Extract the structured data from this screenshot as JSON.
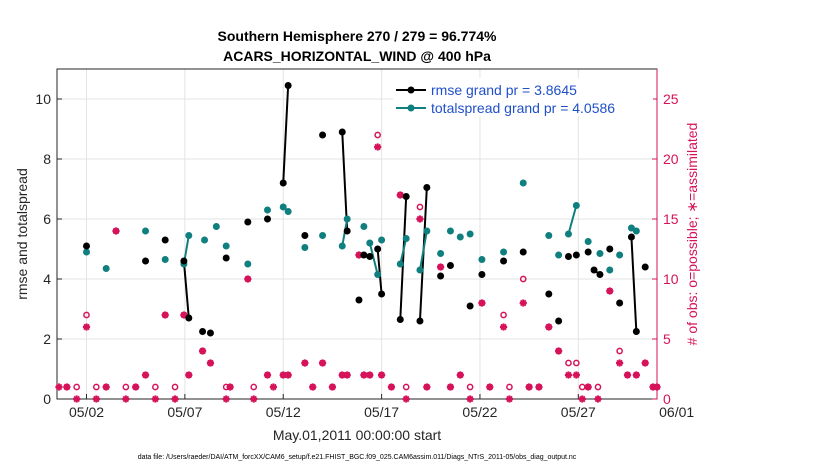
{
  "chart_data": {
    "type": "scatter",
    "title": "Southern Hemisphere 270 / 279 = 96.774%",
    "subtitle": "ACARS_HORIZONTAL_WIND @ 400 hPa",
    "xlabel": "May.01,2011 00:00:00 start",
    "ylabel_left": "rmse and totalspread",
    "ylabel_right": "# of obs: o=possible; ∗=assimilated",
    "footer": "data file: /Users/raeder/DAI/ATM_forcXX/CAM6_setup/f.e21.FHIST_BGC.f09_025.CAM6assim.011/Diags_NTrS_2011-05/obs_diag_output.nc",
    "xlim": [
      0.5,
      31
    ],
    "ylim_left": [
      0,
      11
    ],
    "ylim_right": [
      0,
      27.5
    ],
    "x_ticks": [
      {
        "v": 2,
        "label": "05/02"
      },
      {
        "v": 7,
        "label": "05/07"
      },
      {
        "v": 12,
        "label": "05/12"
      },
      {
        "v": 17,
        "label": "05/17"
      },
      {
        "v": 22,
        "label": "05/22"
      },
      {
        "v": 27,
        "label": "05/27"
      },
      {
        "v": 32,
        "label": "06/01"
      }
    ],
    "y_ticks_left": [
      "0",
      "2",
      "4",
      "6",
      "8",
      "10"
    ],
    "y_ticks_right": [
      "0",
      "5",
      "10",
      "15",
      "20",
      "25"
    ],
    "grid": true,
    "legend_position": "top-right",
    "colors": {
      "rmse": "#000000",
      "spread": "#0f7f7f",
      "obs": "#d6135a",
      "legend_text": "#1f50c8"
    },
    "series": [
      {
        "name": "rmse grand pr = 3.8645",
        "points": [
          [
            2.0,
            5.1
          ],
          [
            5.0,
            4.6
          ],
          [
            6.0,
            5.3
          ],
          [
            6.95,
            4.6
          ],
          [
            7.2,
            2.7
          ],
          [
            7.9,
            2.25
          ],
          [
            8.3,
            2.2
          ],
          [
            9.1,
            4.7
          ],
          [
            10.2,
            5.9
          ],
          [
            11.2,
            6.0
          ],
          [
            12.0,
            7.2
          ],
          [
            12.25,
            10.45
          ],
          [
            13.1,
            5.45
          ],
          [
            14.0,
            8.8
          ],
          [
            15.0,
            8.9
          ],
          [
            15.25,
            5.6
          ],
          [
            15.85,
            3.3
          ],
          [
            16.1,
            4.8
          ],
          [
            16.4,
            4.75
          ],
          [
            16.8,
            5.0
          ],
          [
            17.0,
            3.5
          ],
          [
            17.95,
            2.65
          ],
          [
            18.25,
            6.75
          ],
          [
            18.95,
            2.6
          ],
          [
            19.3,
            7.05
          ],
          [
            20.0,
            4.1
          ],
          [
            20.5,
            4.45
          ],
          [
            21.5,
            3.1
          ],
          [
            22.1,
            4.15
          ],
          [
            23.2,
            4.6
          ],
          [
            24.2,
            4.9
          ],
          [
            25.5,
            3.5
          ],
          [
            26.0,
            2.6
          ],
          [
            26.5,
            4.75
          ],
          [
            26.9,
            4.8
          ],
          [
            27.5,
            4.9
          ],
          [
            27.8,
            4.3
          ],
          [
            28.1,
            4.15
          ],
          [
            28.6,
            5.0
          ],
          [
            29.1,
            3.2
          ],
          [
            29.7,
            5.4
          ],
          [
            29.95,
            2.25
          ],
          [
            30.4,
            4.4
          ]
        ],
        "segments": [
          [
            6.95,
            7.2
          ],
          [
            12.0,
            12.25
          ],
          [
            15.0,
            15.25
          ],
          [
            16.1,
            16.4
          ],
          [
            16.8,
            17.0
          ],
          [
            17.95,
            18.25
          ],
          [
            18.95,
            19.3
          ],
          [
            27.8,
            28.1
          ],
          [
            29.7,
            29.95
          ]
        ]
      },
      {
        "name": "totalspread grand pr = 4.0586",
        "points": [
          [
            2.0,
            4.9
          ],
          [
            3.0,
            4.35
          ],
          [
            5.0,
            5.6
          ],
          [
            6.0,
            4.65
          ],
          [
            6.95,
            4.5
          ],
          [
            7.2,
            5.45
          ],
          [
            8.0,
            5.3
          ],
          [
            8.6,
            5.75
          ],
          [
            9.1,
            5.1
          ],
          [
            10.2,
            4.5
          ],
          [
            11.2,
            6.3
          ],
          [
            12.0,
            6.4
          ],
          [
            12.25,
            6.25
          ],
          [
            13.1,
            5.05
          ],
          [
            14.0,
            5.45
          ],
          [
            15.0,
            5.1
          ],
          [
            15.25,
            6.0
          ],
          [
            16.1,
            5.75
          ],
          [
            16.4,
            5.2
          ],
          [
            16.8,
            4.15
          ],
          [
            17.0,
            5.3
          ],
          [
            17.95,
            4.5
          ],
          [
            18.25,
            5.35
          ],
          [
            18.95,
            4.3
          ],
          [
            19.3,
            5.6
          ],
          [
            20.0,
            4.85
          ],
          [
            20.5,
            5.6
          ],
          [
            21.0,
            5.4
          ],
          [
            21.5,
            5.5
          ],
          [
            22.1,
            4.65
          ],
          [
            23.2,
            4.9
          ],
          [
            24.2,
            7.2
          ],
          [
            25.5,
            5.45
          ],
          [
            26.0,
            4.8
          ],
          [
            26.5,
            5.5
          ],
          [
            26.9,
            6.45
          ],
          [
            27.5,
            5.25
          ],
          [
            28.1,
            4.85
          ],
          [
            28.6,
            4.3
          ],
          [
            29.1,
            4.8
          ],
          [
            29.7,
            5.7
          ],
          [
            29.95,
            5.6
          ]
        ],
        "segments": [
          [
            6.95,
            7.2
          ],
          [
            15.0,
            15.25
          ],
          [
            16.4,
            16.8
          ],
          [
            17.95,
            18.25
          ],
          [
            18.95,
            19.3
          ],
          [
            26.5,
            26.9
          ]
        ]
      },
      {
        "name": "obs possible",
        "points": [
          [
            1.0,
            1
          ],
          [
            1.5,
            1
          ],
          [
            2.0,
            7
          ],
          [
            2.5,
            1
          ],
          [
            3.0,
            1
          ],
          [
            3.5,
            14
          ],
          [
            4.0,
            1
          ],
          [
            4.5,
            1
          ],
          [
            5.0,
            2
          ],
          [
            5.5,
            1
          ],
          [
            6.0,
            7
          ],
          [
            6.5,
            1
          ],
          [
            6.95,
            7
          ],
          [
            7.2,
            2
          ],
          [
            7.9,
            4
          ],
          [
            8.3,
            3
          ],
          [
            9.1,
            1
          ],
          [
            9.3,
            1
          ],
          [
            10.2,
            10
          ],
          [
            10.5,
            1
          ],
          [
            11.2,
            2
          ],
          [
            12.0,
            2
          ],
          [
            12.25,
            2
          ],
          [
            13.1,
            3
          ],
          [
            13.5,
            1
          ],
          [
            14.0,
            3
          ],
          [
            14.5,
            1
          ],
          [
            15.0,
            2
          ],
          [
            15.25,
            2
          ],
          [
            15.85,
            12
          ],
          [
            16.1,
            2
          ],
          [
            16.4,
            2
          ],
          [
            16.8,
            22
          ],
          [
            17.0,
            2
          ],
          [
            17.5,
            1
          ],
          [
            17.95,
            17
          ],
          [
            18.25,
            1
          ],
          [
            18.95,
            16
          ],
          [
            19.3,
            1
          ],
          [
            20.0,
            11
          ],
          [
            20.5,
            1
          ],
          [
            21.0,
            2
          ],
          [
            21.5,
            1
          ],
          [
            22.1,
            8
          ],
          [
            22.5,
            1
          ],
          [
            23.2,
            7
          ],
          [
            23.5,
            1
          ],
          [
            24.2,
            10
          ],
          [
            24.5,
            1
          ],
          [
            25.0,
            1
          ],
          [
            25.5,
            6
          ],
          [
            26.0,
            4
          ],
          [
            26.5,
            3
          ],
          [
            26.9,
            3
          ],
          [
            27.2,
            1
          ],
          [
            27.5,
            1
          ],
          [
            28.0,
            1
          ],
          [
            28.6,
            9
          ],
          [
            29.1,
            4
          ],
          [
            29.5,
            2
          ],
          [
            29.95,
            2
          ],
          [
            30.4,
            3
          ],
          [
            30.8,
            1
          ],
          [
            31.0,
            1
          ]
        ]
      },
      {
        "name": "obs assimilated",
        "points": [
          [
            0.6,
            1
          ],
          [
            1.0,
            1
          ],
          [
            1.5,
            0
          ],
          [
            2.0,
            6
          ],
          [
            2.5,
            0
          ],
          [
            3.0,
            1
          ],
          [
            3.5,
            14
          ],
          [
            4.0,
            0
          ],
          [
            4.5,
            1
          ],
          [
            5.0,
            2
          ],
          [
            5.5,
            0
          ],
          [
            6.0,
            7
          ],
          [
            6.5,
            0
          ],
          [
            6.95,
            7
          ],
          [
            7.2,
            2
          ],
          [
            7.9,
            4
          ],
          [
            8.3,
            3
          ],
          [
            9.1,
            0
          ],
          [
            9.3,
            1
          ],
          [
            10.2,
            10
          ],
          [
            10.5,
            0
          ],
          [
            11.2,
            2
          ],
          [
            11.5,
            1
          ],
          [
            12.0,
            2
          ],
          [
            12.25,
            2
          ],
          [
            13.1,
            3
          ],
          [
            13.5,
            1
          ],
          [
            14.0,
            3
          ],
          [
            14.5,
            1
          ],
          [
            15.0,
            2
          ],
          [
            15.25,
            2
          ],
          [
            15.85,
            12
          ],
          [
            16.1,
            2
          ],
          [
            16.4,
            2
          ],
          [
            16.8,
            21
          ],
          [
            17.0,
            2
          ],
          [
            17.5,
            1
          ],
          [
            17.95,
            17
          ],
          [
            18.25,
            0
          ],
          [
            18.95,
            15
          ],
          [
            19.3,
            1
          ],
          [
            20.0,
            11
          ],
          [
            20.5,
            1
          ],
          [
            21.0,
            2
          ],
          [
            21.5,
            0
          ],
          [
            22.1,
            8
          ],
          [
            22.5,
            1
          ],
          [
            23.2,
            6
          ],
          [
            23.5,
            0
          ],
          [
            24.2,
            8
          ],
          [
            24.5,
            1
          ],
          [
            25.0,
            1
          ],
          [
            25.5,
            6
          ],
          [
            26.0,
            4
          ],
          [
            26.5,
            2
          ],
          [
            26.9,
            2
          ],
          [
            27.2,
            0
          ],
          [
            27.5,
            1
          ],
          [
            28.0,
            0
          ],
          [
            28.6,
            9
          ],
          [
            29.1,
            3
          ],
          [
            29.5,
            2
          ],
          [
            29.95,
            2
          ],
          [
            30.4,
            3
          ],
          [
            30.8,
            1
          ],
          [
            31.0,
            1
          ]
        ]
      }
    ]
  }
}
